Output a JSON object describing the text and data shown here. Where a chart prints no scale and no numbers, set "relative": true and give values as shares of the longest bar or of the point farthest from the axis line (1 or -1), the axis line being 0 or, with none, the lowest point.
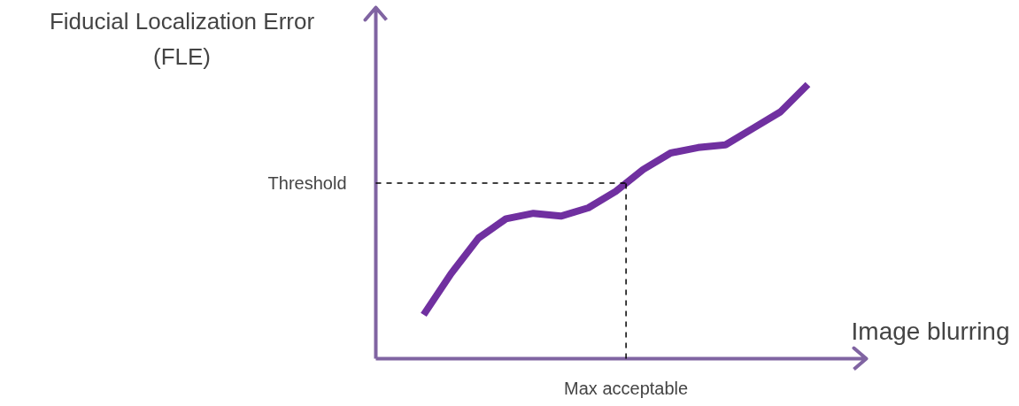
{
  "chart_data": {
    "type": "line",
    "relative": true,
    "color": "#7030a0",
    "grid": false,
    "ylabel": "Fiducial Localization Error\n(FLE)",
    "xlabel": "Image blurring",
    "categories": [
      null,
      null,
      null,
      null,
      null,
      null,
      null,
      null,
      null,
      null,
      null,
      null,
      null,
      null,
      null
    ],
    "values": [
      0.16,
      0.31,
      0.44,
      0.51,
      0.53,
      0.52,
      0.55,
      0.61,
      0.69,
      0.75,
      0.77,
      0.78,
      0.84,
      0.9,
      1.0
    ],
    "ref_lines": [
      {
        "axis": "y",
        "value": 0.64,
        "label": "Threshold",
        "line_style": "dashed",
        "color": "#000000"
      }
    ],
    "annotations": [
      "Max acceptable"
    ]
  }
}
